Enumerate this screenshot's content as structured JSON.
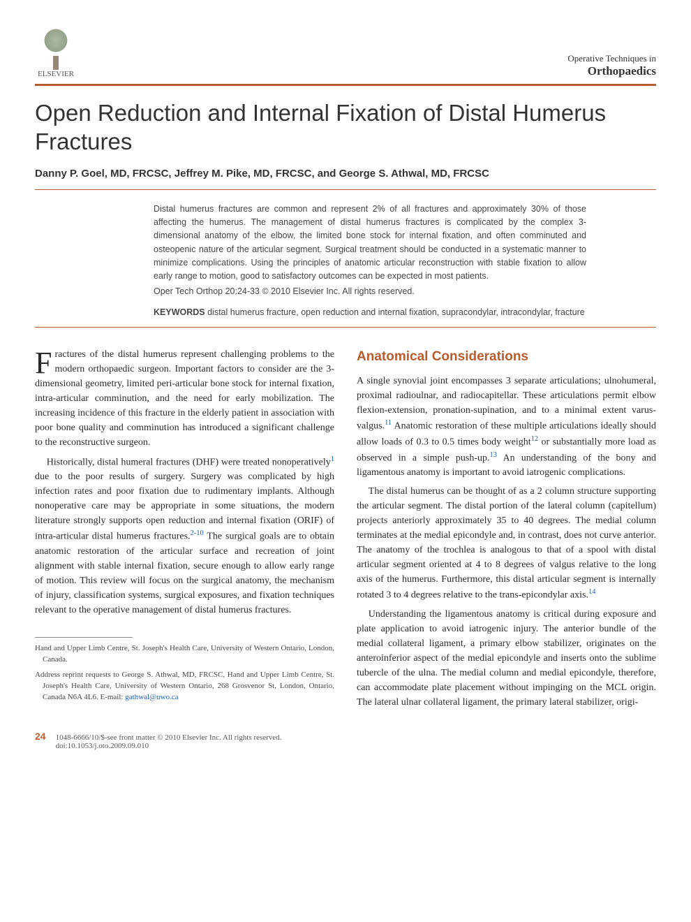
{
  "publisher": {
    "name": "ELSEVIER"
  },
  "journal": {
    "top_line": "Operative Techniques in",
    "main": "Orthopaedics"
  },
  "colors": {
    "accent": "#b85c2e",
    "link": "#1a5fb4",
    "body_text": "#2a2a2a",
    "muted": "#555",
    "background": "#ffffff"
  },
  "typography": {
    "title_fontsize_pt": 25,
    "author_fontsize_pt": 11,
    "body_fontsize_pt": 10.5,
    "abstract_fontsize_pt": 9.5,
    "heading_fontsize_pt": 14,
    "body_font": "Georgia/serif",
    "sans_font": "Arial/Helvetica"
  },
  "article": {
    "title": "Open Reduction and Internal Fixation of Distal Humerus Fractures",
    "authors": "Danny P. Goel, MD, FRCSC, Jeffrey M. Pike, MD, FRCSC, and George S. Athwal, MD, FRCSC",
    "abstract": "Distal humerus fractures are common and represent 2% of all fractures and approximately 30% of those affecting the humerus. The management of distal humerus fractures is complicated by the complex 3-dimensional anatomy of the elbow, the limited bone stock for internal fixation, and often comminuted and osteopenic nature of the articular segment. Surgical treatment should be conducted in a systematic manner to minimize complications. Using the principles of anatomic articular reconstruction with stable fixation to allow early range to motion, good to satisfactory outcomes can be expected in most patients.",
    "citation": "Oper Tech Orthop 20:24-33 © 2010 Elsevier Inc. All rights reserved.",
    "keywords_label": "KEYWORDS",
    "keywords": "distal humerus fracture, open reduction and internal fixation, supracondylar, intracondylar, fracture"
  },
  "body": {
    "left": {
      "dropcap": "F",
      "p1_rest": "ractures of the distal humerus represent challenging problems to the modern orthopaedic surgeon. Important factors to consider are the 3-dimensional geometry, limited peri-articular bone stock for internal fixation, intra-articular comminution, and the need for early mobilization. The increasing incidence of this fracture in the elderly patient in association with poor bone quality and comminution has introduced a significant challenge to the reconstructive surgeon.",
      "p2a": "Historically, distal humeral fractures (DHF) were treated nonoperatively",
      "p2_sup1": "1",
      "p2b": " due to the poor results of surgery. Surgery was complicated by high infection rates and poor fixation due to rudimentary implants. Although nonoperative care may be appropriate in some situations, the modern literature strongly supports open reduction and internal fixation (ORIF) of intra-articular distal humerus fractures.",
      "p2_sup2": "2-10",
      "p2c": " The surgical goals are to obtain anatomic restoration of the articular surface and recreation of joint alignment with stable internal fixation, secure enough to allow early range of motion. This review will focus on the surgical anatomy, the mechanism of injury, classification systems, surgical exposures, and fixation techniques relevant to the operative management of distal humerus fractures."
    },
    "right": {
      "heading": "Anatomical Considerations",
      "p1a": "A single synovial joint encompasses 3 separate articulations; ulnohumeral, proximal radioulnar, and radiocapitellar. These articulations permit elbow flexion-extension, pronation-supination, and to a minimal extent varus-valgus.",
      "p1_sup1": "11",
      "p1b": " Anatomic restoration of these multiple articulations ideally should allow loads of 0.3 to 0.5 times body weight",
      "p1_sup2": "12",
      "p1c": " or substantially more load as observed in a simple push-up.",
      "p1_sup3": "13",
      "p1d": " An understanding of the bony and ligamentous anatomy is important to avoid iatrogenic complications.",
      "p2a": "The distal humerus can be thought of as a 2 column structure supporting the articular segment. The distal portion of the lateral column (capitellum) projects anteriorly approximately 35 to 40 degrees. The medial column terminates at the medial epicondyle and, in contrast, does not curve anterior. The anatomy of the trochlea is analogous to that of a spool with distal articular segment oriented at 4 to 8 degrees of valgus relative to the long axis of the humerus. Furthermore, this distal articular segment is internally rotated 3 to 4 degrees relative to the trans-epicondylar axis.",
      "p2_sup1": "14",
      "p3": "Understanding the ligamentous anatomy is critical during exposure and plate application to avoid iatrogenic injury. The anterior bundle of the medial collateral ligament, a primary elbow stabilizer, originates on the anteroinferior aspect of the medial epicondyle and inserts onto the sublime tubercle of the ulna. The medial column and medial epicondyle, therefore, can accommodate plate placement without impinging on the MCL origin. The lateral ulnar collateral ligament, the primary lateral stabilizer, origi-"
    }
  },
  "affiliations": {
    "inst": "Hand and Upper Limb Centre, St. Joseph's Health Care, University of Western Ontario, London, Canada.",
    "reprint": "Address reprint requests to George S. Athwal, MD, FRCSC, Hand and Upper Limb Centre, St. Joseph's Health Care, University of Western Ontario, 268 Grosvenor St, London, Ontario, Canada N6A 4L6. E-mail: ",
    "email": "gathwal@uwo.ca"
  },
  "footer": {
    "page": "24",
    "copyright": "1048-6666/10/$-see front matter © 2010 Elsevier Inc. All rights reserved.",
    "doi": "doi:10.1053/j.oto.2009.09.010"
  }
}
